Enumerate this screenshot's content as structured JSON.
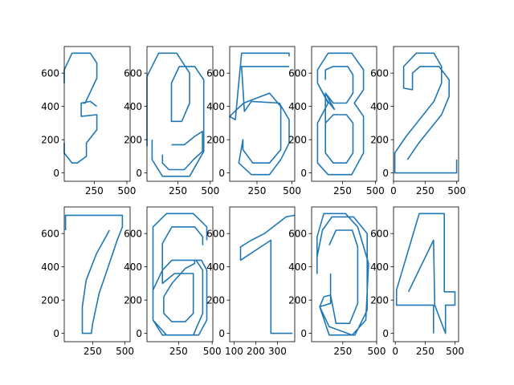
{
  "chart_data": {
    "type": "line",
    "line_color": "#1f77b4",
    "grid": false,
    "legend": "none",
    "panels": [
      {
        "digit": "3",
        "xlim": [
          20,
          525
        ],
        "ylim": [
          -50,
          760
        ],
        "xticks": [
          250,
          500
        ],
        "yticks": [
          0,
          200,
          400,
          600
        ],
        "paths": [
          [
            [
              20,
              540
            ],
            [
              20,
              620
            ],
            [
              80,
              720
            ],
            [
              220,
              720
            ],
            [
              270,
              660
            ],
            [
              270,
              570
            ],
            [
              180,
              420
            ],
            [
              150,
              420
            ],
            [
              150,
              340
            ],
            [
              270,
              350
            ],
            [
              270,
              260
            ],
            [
              190,
              180
            ],
            [
              190,
              100
            ],
            [
              120,
              60
            ],
            [
              80,
              60
            ],
            [
              20,
              120
            ],
            [
              20,
              180
            ]
          ],
          [
            [
              150,
              420
            ],
            [
              220,
              430
            ],
            [
              270,
              400
            ]
          ]
        ]
      },
      {
        "digit": "9",
        "xlim": [
          10,
          520
        ],
        "ylim": [
          -50,
          760
        ],
        "xticks": [
          250,
          500
        ],
        "yticks": [
          0,
          200,
          400,
          600
        ],
        "paths": [
          [
            [
              10,
              160
            ],
            [
              10,
              580
            ],
            [
              100,
              720
            ],
            [
              240,
              720
            ],
            [
              340,
              600
            ],
            [
              340,
              420
            ],
            [
              280,
              310
            ],
            [
              200,
              310
            ],
            [
              200,
              540
            ],
            [
              260,
              640
            ],
            [
              380,
              640
            ],
            [
              450,
              560
            ],
            [
              450,
              130
            ],
            [
              340,
              -20
            ],
            [
              130,
              -20
            ],
            [
              50,
              80
            ],
            [
              50,
              200
            ]
          ],
          [
            [
              130,
              110
            ],
            [
              130,
              60
            ],
            [
              180,
              20
            ],
            [
              300,
              20
            ],
            [
              370,
              80
            ],
            [
              440,
              130
            ],
            [
              440,
              250
            ],
            [
              380,
              220
            ],
            [
              300,
              170
            ],
            [
              200,
              170
            ]
          ]
        ]
      },
      {
        "digit": "5",
        "xlim": [
          55,
          520
        ],
        "ylim": [
          -50,
          760
        ],
        "xticks": [
          250,
          500
        ],
        "yticks": [
          0,
          200,
          400,
          600
        ],
        "paths": [
          [
            [
              480,
              700
            ],
            [
              480,
              720
            ],
            [
              140,
              720
            ],
            [
              95,
              320
            ],
            [
              55,
              340
            ],
            [
              155,
              420
            ],
            [
              340,
              480
            ],
            [
              420,
              400
            ],
            [
              420,
              140
            ],
            [
              340,
              60
            ],
            [
              220,
              60
            ],
            [
              150,
              140
            ],
            [
              150,
              200
            ],
            [
              120,
              60
            ],
            [
              210,
              -10
            ],
            [
              340,
              -10
            ],
            [
              420,
              80
            ],
            [
              480,
              180
            ],
            [
              480,
              320
            ],
            [
              410,
              420
            ],
            [
              210,
              430
            ],
            [
              160,
              370
            ],
            [
              140,
              640
            ],
            [
              480,
              640
            ]
          ]
        ]
      },
      {
        "digit": "8",
        "xlim": [
          15,
          510
        ],
        "ylim": [
          -50,
          760
        ],
        "xticks": [
          250,
          500
        ],
        "yticks": [
          0,
          200,
          400,
          600
        ],
        "paths": [
          [
            [
              190,
              380
            ],
            [
              130,
              440
            ],
            [
              60,
              540
            ],
            [
              60,
              620
            ],
            [
              140,
              720
            ],
            [
              320,
              720
            ],
            [
              410,
              620
            ],
            [
              410,
              500
            ],
            [
              340,
              420
            ],
            [
              410,
              340
            ],
            [
              410,
              120
            ],
            [
              320,
              -10
            ],
            [
              140,
              -10
            ],
            [
              60,
              60
            ],
            [
              60,
              300
            ],
            [
              140,
              420
            ],
            [
              60,
              540
            ]
          ],
          [
            [
              120,
              560
            ],
            [
              120,
              620
            ],
            [
              180,
              640
            ],
            [
              290,
              640
            ],
            [
              330,
              590
            ],
            [
              330,
              480
            ],
            [
              280,
              420
            ],
            [
              180,
              420
            ],
            [
              120,
              480
            ],
            [
              120,
              300
            ],
            [
              180,
              350
            ],
            [
              280,
              350
            ],
            [
              330,
              300
            ],
            [
              330,
              120
            ],
            [
              280,
              60
            ],
            [
              180,
              60
            ],
            [
              120,
              120
            ],
            [
              120,
              300
            ],
            [
              120,
              480
            ],
            [
              190,
              380
            ]
          ]
        ]
      },
      {
        "digit": "2",
        "xlim": [
          0,
          515
        ],
        "ylim": [
          -50,
          760
        ],
        "xticks": [
          0,
          250,
          500
        ],
        "yticks": [
          0,
          200,
          400,
          600
        ],
        "paths": [
          [
            [
              500,
              80
            ],
            [
              500,
              0
            ],
            [
              10,
              0
            ],
            [
              10,
              120
            ],
            [
              100,
              220
            ],
            [
              320,
              430
            ],
            [
              380,
              540
            ],
            [
              380,
              640
            ],
            [
              320,
              720
            ],
            [
              180,
              720
            ],
            [
              80,
              640
            ],
            [
              80,
              510
            ],
            [
              150,
              500
            ],
            [
              150,
              600
            ],
            [
              210,
              640
            ],
            [
              360,
              640
            ],
            [
              440,
              560
            ],
            [
              440,
              460
            ],
            [
              380,
              350
            ],
            [
              200,
              180
            ],
            [
              110,
              80
            ]
          ]
        ]
      },
      {
        "digit": "7",
        "xlim": [
          30,
          540
        ],
        "ylim": [
          -50,
          760
        ],
        "xticks": [
          250,
          500
        ],
        "yticks": [
          0,
          200,
          400,
          600
        ],
        "paths": [
          [
            [
              40,
              620
            ],
            [
              40,
              710
            ],
            [
              480,
              710
            ],
            [
              480,
              640
            ],
            [
              440,
              560
            ],
            [
              370,
              400
            ],
            [
              300,
              240
            ],
            [
              250,
              60
            ],
            [
              240,
              0
            ],
            [
              170,
              0
            ],
            [
              170,
              160
            ],
            [
              200,
              320
            ],
            [
              280,
              480
            ],
            [
              380,
              620
            ]
          ]
        ]
      },
      {
        "digit": "6",
        "xlim": [
          15,
          505
        ],
        "ylim": [
          -50,
          760
        ],
        "xticks": [
          250,
          500
        ],
        "yticks": [
          0,
          200,
          400,
          600
        ],
        "paths": [
          [
            [
              430,
              530
            ],
            [
              430,
              580
            ],
            [
              370,
              640
            ],
            [
              200,
              640
            ],
            [
              130,
              540
            ],
            [
              130,
              380
            ],
            [
              200,
              440
            ],
            [
              380,
              440
            ],
            [
              430,
              380
            ],
            [
              430,
              120
            ],
            [
              360,
              -10
            ],
            [
              130,
              -10
            ],
            [
              60,
              80
            ],
            [
              60,
              260
            ],
            [
              130,
              380
            ],
            [
              130,
              300
            ],
            [
              220,
              360
            ],
            [
              360,
              360
            ],
            [
              360,
              120
            ],
            [
              300,
              70
            ],
            [
              200,
              70
            ],
            [
              140,
              120
            ],
            [
              140,
              220
            ],
            [
              200,
              300
            ],
            [
              300,
              390
            ],
            [
              370,
              420
            ],
            [
              370,
              440
            ],
            [
              420,
              440
            ],
            [
              460,
              380
            ],
            [
              460,
              80
            ],
            [
              400,
              -10
            ],
            [
              160,
              -10
            ],
            [
              60,
              80
            ],
            [
              60,
              640
            ],
            [
              160,
              720
            ],
            [
              360,
              720
            ],
            [
              460,
              640
            ],
            [
              460,
              560
            ]
          ]
        ]
      },
      {
        "digit": "1",
        "xlim": [
          80,
          380
        ],
        "ylim": [
          -50,
          760
        ],
        "xticks": [
          100,
          200,
          300
        ],
        "yticks": [
          0,
          200,
          400,
          600
        ],
        "paths": [
          [
            [
              370,
              0
            ],
            [
              270,
              0
            ],
            [
              270,
              560
            ],
            [
              130,
              440
            ],
            [
              130,
              520
            ],
            [
              180,
              560
            ],
            [
              240,
              600
            ],
            [
              300,
              660
            ],
            [
              340,
              700
            ],
            [
              380,
              710
            ]
          ]
        ]
      },
      {
        "digit": "0",
        "xlim": [
          20,
          500
        ],
        "ylim": [
          -50,
          760
        ],
        "xticks": [
          250,
          500
        ],
        "yticks": [
          0,
          200,
          400,
          600
        ],
        "paths": [
          [
            [
              160,
              360
            ],
            [
              160,
              180
            ],
            [
              80,
              160
            ],
            [
              150,
              40
            ],
            [
              320,
              -10
            ],
            [
              420,
              80
            ],
            [
              440,
              420
            ],
            [
              360,
              640
            ],
            [
              270,
              720
            ],
            [
              110,
              720
            ],
            [
              60,
              580
            ],
            [
              60,
              360
            ],
            [
              60,
              460
            ],
            [
              100,
              620
            ],
            [
              170,
              700
            ],
            [
              330,
              700
            ],
            [
              430,
              600
            ],
            [
              430,
              140
            ],
            [
              340,
              -10
            ],
            [
              150,
              -10
            ],
            [
              80,
              160
            ],
            [
              110,
              220
            ],
            [
              160,
              230
            ],
            [
              200,
              60
            ],
            [
              300,
              60
            ],
            [
              360,
              180
            ],
            [
              360,
              520
            ],
            [
              320,
              620
            ],
            [
              200,
              620
            ],
            [
              150,
              530
            ]
          ]
        ]
      },
      {
        "digit": "4",
        "xlim": [
          -15,
          530
        ],
        "ylim": [
          -50,
          760
        ],
        "xticks": [
          0,
          250,
          500
        ],
        "yticks": [
          0,
          200,
          400,
          600
        ],
        "paths": [
          [
            [
              320,
              0
            ],
            [
              320,
              170
            ],
            [
              10,
              170
            ],
            [
              10,
              260
            ],
            [
              200,
              720
            ],
            [
              410,
              720
            ],
            [
              410,
              250
            ],
            [
              500,
              250
            ],
            [
              500,
              170
            ],
            [
              420,
              170
            ],
            [
              420,
              0
            ],
            [
              330,
              170
            ],
            [
              320,
              560
            ],
            [
              110,
              250
            ]
          ]
        ]
      }
    ]
  }
}
